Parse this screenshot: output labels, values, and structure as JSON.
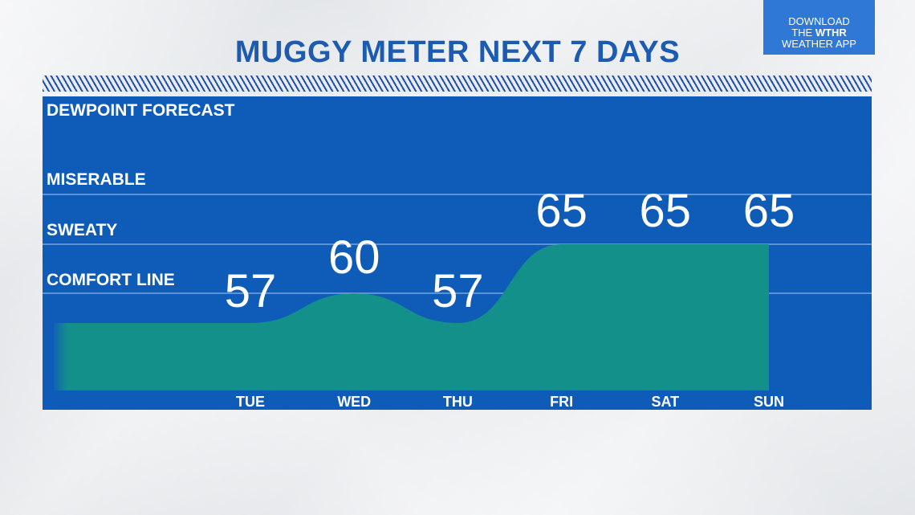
{
  "header": {
    "title": "MUGGY METER NEXT 7 DAYS"
  },
  "promo": {
    "line1": "DOWNLOAD",
    "line2_prefix": "THE ",
    "line2_brand": "WTHR",
    "line3": "WEATHER APP"
  },
  "chart_data": {
    "type": "area",
    "title": "MUGGY METER NEXT 7 DAYS",
    "subtitle": "DEWPOINT FORECAST",
    "categories": [
      "TUE",
      "WED",
      "THU",
      "FRI",
      "SAT",
      "SUN"
    ],
    "values": [
      57,
      60,
      57,
      65,
      65,
      65
    ],
    "value_labels": [
      "57",
      "60",
      "57",
      "65",
      "65",
      "65"
    ],
    "levels": [
      {
        "label": "MISERABLE"
      },
      {
        "label": "SWEATY"
      },
      {
        "label": "COMFORT LINE"
      }
    ],
    "grid": true,
    "colors": {
      "background": "#0f5cb8",
      "area": "#14908a",
      "gridline": "#8fb3e3",
      "text": "#ffffff",
      "title": "#1d5bb0"
    }
  }
}
